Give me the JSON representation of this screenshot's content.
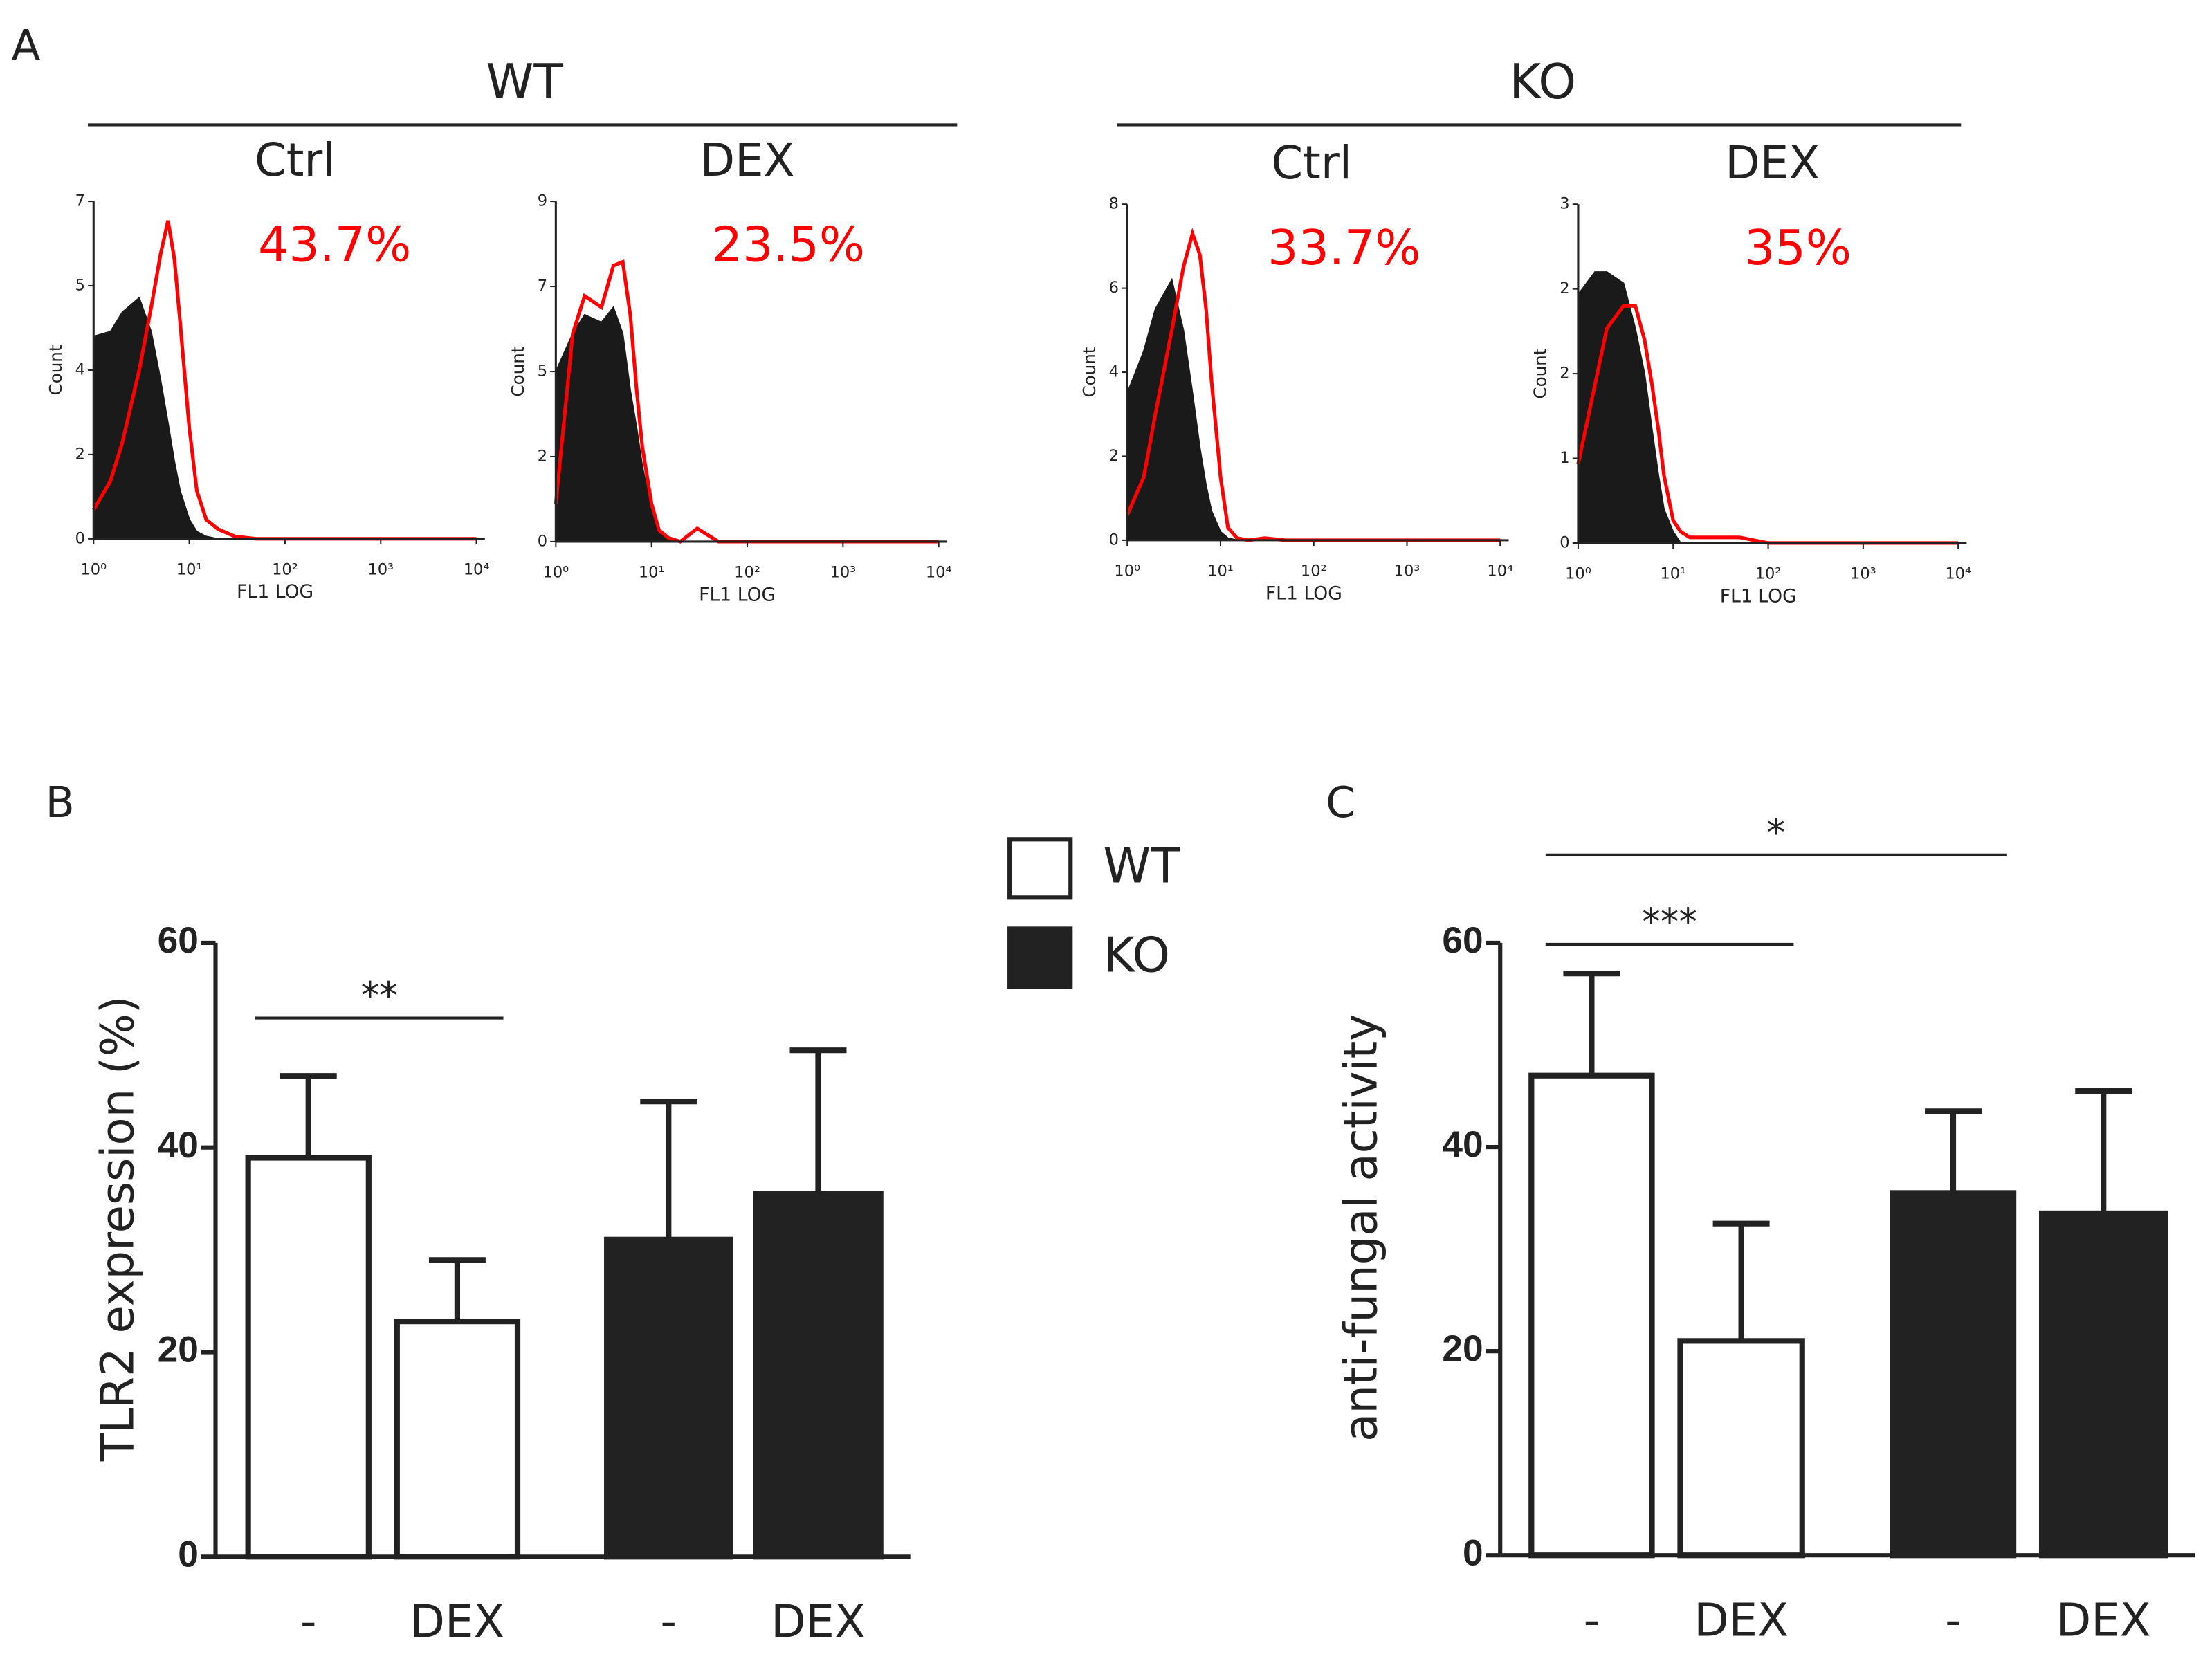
{
  "panel_labels": [
    "A",
    "B",
    "C"
  ],
  "group_labels": [
    "WT",
    "KO"
  ],
  "chart_data": [
    {
      "type": "histogram-line",
      "title": "Ctrl",
      "annotation": "43.7%",
      "annotation_color": "#ff0000",
      "xlabel": "FL1 LOG",
      "ylabel": "Count",
      "xscale": "log",
      "xlim": [
        1,
        10000
      ],
      "xticks": [
        {
          "value": 1,
          "label": "10⁰"
        },
        {
          "value": 10,
          "label": "10¹"
        },
        {
          "value": 100,
          "label": "10²"
        },
        {
          "value": 1000,
          "label": "10³"
        },
        {
          "value": 10000,
          "label": "10⁴"
        }
      ],
      "ylim": [
        0,
        7
      ],
      "yticks": [
        0,
        {
          "value": 1.75,
          "label": "2"
        },
        {
          "value": 3.5,
          "label": "4"
        },
        {
          "value": 5.25,
          "label": "5"
        },
        7
      ],
      "x": [
        1,
        1.5,
        2,
        3,
        4,
        5,
        6,
        7,
        8,
        10,
        12,
        15,
        20,
        30,
        50,
        100,
        1000,
        10000
      ],
      "series": [
        {
          "color": "#1a1a1a",
          "fill": true,
          "values": [
            4.2,
            4.3,
            4.7,
            5.0,
            4.3,
            3.3,
            2.4,
            1.6,
            1.0,
            0.4,
            0.15,
            0.05,
            0,
            0,
            0,
            0,
            0,
            0
          ]
        },
        {
          "color": "#ff0000",
          "fill": false,
          "values": [
            0.6,
            1.2,
            2.0,
            3.5,
            4.8,
            5.9,
            6.6,
            5.8,
            4.5,
            2.3,
            1.0,
            0.4,
            0.2,
            0.05,
            0,
            0,
            0,
            0
          ]
        }
      ]
    },
    {
      "type": "histogram-line",
      "title": "DEX",
      "annotation": "23.5%",
      "annotation_color": "#ff0000",
      "xlabel": "FL1 LOG",
      "ylabel": "Count",
      "xscale": "log",
      "xlim": [
        1,
        10000
      ],
      "xticks": [
        {
          "value": 1,
          "label": "10⁰"
        },
        {
          "value": 10,
          "label": "10¹"
        },
        {
          "value": 100,
          "label": "10²"
        },
        {
          "value": 1000,
          "label": "10³"
        },
        {
          "value": 10000,
          "label": "10⁴"
        }
      ],
      "ylim": [
        0,
        9
      ],
      "yticks": [
        0,
        {
          "value": 2.25,
          "label": "2"
        },
        {
          "value": 4.5,
          "label": "5"
        },
        {
          "value": 6.75,
          "label": "7"
        },
        9
      ],
      "x": [
        1,
        1.5,
        2,
        3,
        4,
        5,
        6,
        7,
        8,
        10,
        12,
        15,
        20,
        30,
        50,
        100,
        1000,
        10000
      ],
      "series": [
        {
          "color": "#1a1a1a",
          "fill": true,
          "values": [
            4.5,
            5.5,
            6.0,
            5.8,
            6.2,
            5.5,
            4.0,
            3.0,
            2.0,
            0.8,
            0.3,
            0.1,
            0,
            0,
            0,
            0,
            0,
            0
          ]
        },
        {
          "color": "#ff0000",
          "fill": false,
          "values": [
            1.0,
            5.5,
            6.5,
            6.2,
            7.3,
            7.4,
            6.0,
            4.0,
            2.5,
            1.0,
            0.3,
            0.1,
            0,
            0.35,
            0,
            0,
            0,
            0
          ]
        }
      ]
    },
    {
      "type": "histogram-line",
      "title": "Ctrl",
      "annotation": "33.7%",
      "annotation_color": "#ff0000",
      "xlabel": "FL1 LOG",
      "ylabel": "Count",
      "xscale": "log",
      "xlim": [
        1,
        10000
      ],
      "xticks": [
        {
          "value": 1,
          "label": "10⁰"
        },
        {
          "value": 10,
          "label": "10¹"
        },
        {
          "value": 100,
          "label": "10²"
        },
        {
          "value": 1000,
          "label": "10³"
        },
        {
          "value": 10000,
          "label": "10⁴"
        }
      ],
      "ylim": [
        0,
        8
      ],
      "yticks": [
        0,
        2,
        4,
        6,
        8
      ],
      "x": [
        1,
        1.5,
        2,
        3,
        4,
        5,
        6,
        7,
        8,
        10,
        12,
        15,
        20,
        30,
        50,
        100,
        1000,
        10000
      ],
      "series": [
        {
          "color": "#1a1a1a",
          "fill": true,
          "values": [
            3.5,
            4.5,
            5.5,
            6.2,
            5.0,
            3.5,
            2.2,
            1.3,
            0.7,
            0.2,
            0.05,
            0,
            0,
            0,
            0,
            0,
            0,
            0
          ]
        },
        {
          "color": "#ff0000",
          "fill": false,
          "values": [
            0.6,
            1.5,
            3.0,
            5.0,
            6.5,
            7.3,
            6.8,
            5.5,
            3.8,
            1.5,
            0.3,
            0.05,
            0,
            0.05,
            0,
            0,
            0,
            0
          ]
        }
      ]
    },
    {
      "type": "histogram-line",
      "title": "DEX",
      "annotation": "35%",
      "annotation_color": "#ff0000",
      "xlabel": "FL1 LOG",
      "ylabel": "Count",
      "xscale": "log",
      "xlim": [
        1,
        10000
      ],
      "xticks": [
        {
          "value": 1,
          "label": "10⁰"
        },
        {
          "value": 10,
          "label": "10¹"
        },
        {
          "value": 100,
          "label": "10²"
        },
        {
          "value": 1000,
          "label": "10³"
        },
        {
          "value": 10000,
          "label": "10⁴"
        }
      ],
      "ylim": [
        0,
        3
      ],
      "yticks": [
        0,
        {
          "value": 0.75,
          "label": "1"
        },
        {
          "value": 1.5,
          "label": "2"
        },
        {
          "value": 2.25,
          "label": "2"
        },
        3
      ],
      "x": [
        1,
        1.5,
        2,
        3,
        4,
        5,
        6,
        7,
        8,
        10,
        12,
        15,
        20,
        30,
        50,
        100,
        1000,
        10000
      ],
      "series": [
        {
          "color": "#1a1a1a",
          "fill": true,
          "values": [
            2.2,
            2.4,
            2.4,
            2.3,
            1.9,
            1.5,
            1.0,
            0.6,
            0.3,
            0.1,
            0,
            0,
            0,
            0,
            0,
            0,
            0,
            0
          ]
        },
        {
          "color": "#ff0000",
          "fill": false,
          "values": [
            0.7,
            1.4,
            1.9,
            2.1,
            2.1,
            1.8,
            1.4,
            1.0,
            0.6,
            0.2,
            0.1,
            0.05,
            0.05,
            0.05,
            0.05,
            0,
            0,
            0
          ]
        }
      ]
    },
    {
      "type": "bar",
      "ylabel": "TLR2 expression (%)",
      "categories": [
        "-",
        "DEX",
        "-",
        "DEX"
      ],
      "ylim": [
        0,
        60
      ],
      "yticks": [
        0,
        20,
        40,
        60
      ],
      "series": [
        {
          "name": "WT",
          "color": "#ffffff",
          "values": [
            39,
            23,
            null,
            null
          ],
          "errors": [
            8,
            6,
            null,
            null
          ]
        },
        {
          "name": "KO",
          "color": "#222222",
          "values": [
            null,
            null,
            31,
            35.5
          ],
          "errors": [
            null,
            null,
            13.5,
            14
          ]
        }
      ],
      "annotations": [
        "**"
      ]
    },
    {
      "type": "bar",
      "ylabel": "anti-fungal activity",
      "categories": [
        "-",
        "DEX",
        "-",
        "DEX"
      ],
      "ylim": [
        0,
        60
      ],
      "yticks": [
        0,
        20,
        40,
        60
      ],
      "series": [
        {
          "color": "#ffffff",
          "values": [
            47,
            21,
            null,
            null
          ],
          "errors": [
            10,
            11.5,
            null,
            null
          ]
        },
        {
          "color": "#222222",
          "values": [
            null,
            null,
            35.5,
            33.5
          ],
          "errors": [
            null,
            null,
            8,
            12
          ]
        }
      ],
      "annotations": [
        "***",
        "*"
      ]
    }
  ]
}
